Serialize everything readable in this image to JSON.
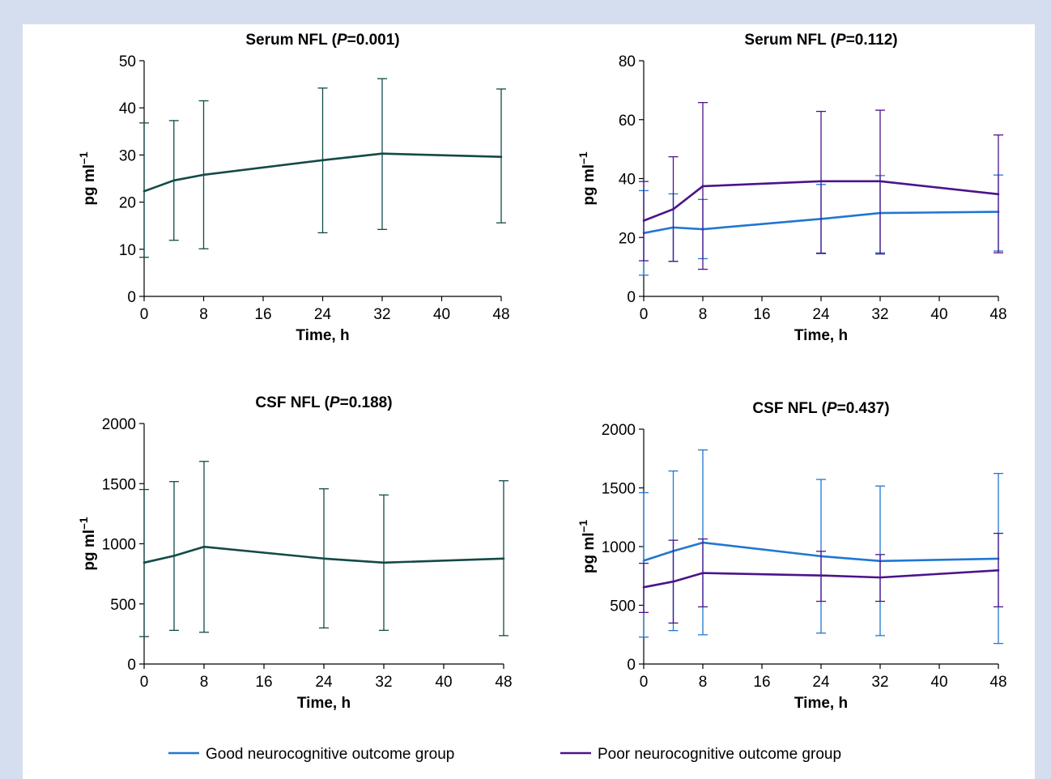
{
  "colors": {
    "single": "#124a47",
    "good": "#2176d2",
    "poor": "#4b148a",
    "axis": "#000000",
    "background": "#d5deef"
  },
  "legend": {
    "placement": "bottom-center",
    "items": [
      {
        "label": "Good neurocognitive outcome group",
        "color": "#2176d2"
      },
      {
        "label": "Poor neurocognitive outcome group",
        "color": "#4b148a"
      }
    ]
  },
  "chart_data": [
    {
      "type": "line",
      "title_main": "Serum NFL (",
      "title_p": "P",
      "title_rest": "=0.001)",
      "xlabel": "Time, h",
      "ylabel_base": "pg ml",
      "ylabel_sup": "–1",
      "xlim": [
        0,
        48
      ],
      "ylim": [
        0,
        50
      ],
      "xticks": [
        0,
        8,
        16,
        24,
        32,
        40,
        48
      ],
      "yticks": [
        0,
        10,
        20,
        30,
        40,
        50
      ],
      "grid": false,
      "series": [
        {
          "color": "#124a47",
          "x": [
            0,
            4,
            8,
            24,
            32,
            48
          ],
          "y": [
            22.3,
            24.6,
            25.8,
            28.9,
            30.3,
            29.6
          ],
          "err_low": [
            8.3,
            11.9,
            10.1,
            13.5,
            14.2,
            15.6
          ],
          "err_high": [
            36.8,
            37.3,
            41.5,
            44.2,
            46.2,
            44.0
          ]
        }
      ]
    },
    {
      "type": "line",
      "title_main": "Serum NFL (",
      "title_p": "P",
      "title_rest": "=0.112)",
      "xlabel": "Time, h",
      "ylabel_base": "pg ml",
      "ylabel_sup": "–1",
      "xlim": [
        0,
        48
      ],
      "ylim": [
        0,
        80
      ],
      "xticks": [
        0,
        8,
        16,
        24,
        32,
        40,
        48
      ],
      "yticks": [
        0,
        20,
        40,
        60,
        80
      ],
      "grid": false,
      "series": [
        {
          "color": "#2176d2",
          "x": [
            0,
            4,
            8,
            24,
            32,
            48
          ],
          "y": [
            21.5,
            23.4,
            22.8,
            26.3,
            28.3,
            28.7
          ],
          "err_low": [
            7.2,
            11.9,
            12.8,
            14.5,
            14.8,
            15.4
          ],
          "err_high": [
            35.9,
            34.8,
            32.9,
            38.0,
            41.0,
            41.2
          ]
        },
        {
          "color": "#4b148a",
          "x": [
            0,
            4,
            8,
            24,
            32,
            48
          ],
          "y": [
            25.7,
            29.6,
            37.4,
            39.1,
            39.1,
            34.7
          ],
          "err_low": [
            12.1,
            11.9,
            9.2,
            14.7,
            14.4,
            14.8
          ],
          "err_high": [
            39.0,
            47.4,
            65.8,
            62.8,
            63.2,
            54.8
          ]
        }
      ]
    },
    {
      "type": "line",
      "title_main": "CSF NFL (",
      "title_p": "P",
      "title_rest": "=0.188)",
      "xlabel": "Time, h",
      "ylabel_base": "pg ml",
      "ylabel_sup": "–1",
      "xlim": [
        0,
        48
      ],
      "ylim": [
        0,
        2000
      ],
      "xticks": [
        0,
        8,
        16,
        24,
        32,
        40,
        48
      ],
      "yticks": [
        0,
        500,
        1000,
        1500,
        2000
      ],
      "grid": false,
      "series": [
        {
          "color": "#124a47",
          "x": [
            0,
            4,
            8,
            24,
            32,
            48
          ],
          "y": [
            843,
            900,
            975,
            877,
            843,
            877
          ],
          "err_low": [
            228,
            280,
            264,
            300,
            280,
            236
          ],
          "err_high": [
            1451,
            1517,
            1685,
            1457,
            1406,
            1524
          ]
        }
      ]
    },
    {
      "type": "line",
      "title_main": "CSF NFL (",
      "title_p": "P",
      "title_rest": "=0.437)",
      "xlabel": "Time, h",
      "ylabel_base": "pg ml",
      "ylabel_sup": "–1",
      "xlim": [
        0,
        48
      ],
      "ylim": [
        0,
        2000
      ],
      "xticks": [
        0,
        8,
        16,
        24,
        32,
        40,
        48
      ],
      "yticks": [
        0,
        500,
        1000,
        1500,
        2000
      ],
      "grid": false,
      "series": [
        {
          "color": "#2176d2",
          "x": [
            0,
            4,
            8,
            24,
            32,
            48
          ],
          "y": [
            880,
            962,
            1034,
            918,
            877,
            897
          ],
          "err_low": [
            229,
            285,
            249,
            263,
            242,
            175
          ],
          "err_high": [
            1459,
            1644,
            1823,
            1572,
            1516,
            1623
          ]
        },
        {
          "color": "#4b148a",
          "x": [
            0,
            4,
            8,
            24,
            32,
            48
          ],
          "y": [
            654,
            702,
            775,
            754,
            737,
            798
          ],
          "err_low": [
            439,
            349,
            487,
            534,
            534,
            487
          ],
          "err_high": [
            858,
            1054,
            1065,
            960,
            932,
            1113
          ]
        }
      ]
    }
  ]
}
